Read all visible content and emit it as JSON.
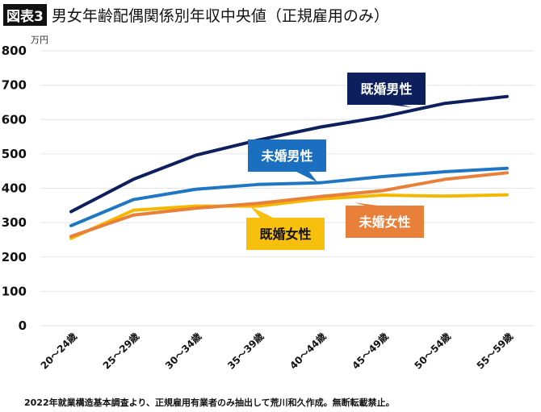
{
  "header": {
    "badge": "図表3",
    "title": "男女年齢配偶関係別年収中央値（正規雇用のみ）"
  },
  "footer": {
    "note": "2022年就業構造基本調査より、正規雇用有業者のみ抽出して荒川和久作成。無断転載禁止。"
  },
  "chart_data": {
    "type": "line",
    "ylabel": "万円",
    "ylim": [
      0,
      800
    ],
    "yticks": [
      "0",
      "100",
      "200",
      "300",
      "400",
      "500",
      "600",
      "700",
      "800"
    ],
    "grid": true,
    "categories": [
      "20～24歳",
      "25～29歳",
      "30～34歳",
      "35～39歳",
      "40～44歳",
      "45～49歳",
      "50～54歳",
      "55～59歳"
    ],
    "series": [
      {
        "name": "既婚男性",
        "color": "#0d1f5c",
        "label_bg": "#0d1f5c",
        "label_fg": "#ffffff",
        "values": [
          332,
          426,
          496,
          540,
          578,
          608,
          647,
          667
        ]
      },
      {
        "name": "未婚男性",
        "color": "#1f77c4",
        "label_bg": "#1a6fc0",
        "label_fg": "#ffffff",
        "values": [
          291,
          367,
          397,
          411,
          416,
          434,
          448,
          458
        ]
      },
      {
        "name": "未婚女性",
        "color": "#e8803a",
        "label_bg": "#e8803a",
        "label_fg": "#ffffff",
        "values": [
          260,
          322,
          342,
          356,
          376,
          393,
          426,
          445
        ]
      },
      {
        "name": "既婚女性",
        "color": "#f5b800",
        "label_bg": "#f7bf0e",
        "label_fg": "#111111",
        "values": [
          254,
          336,
          348,
          348,
          369,
          380,
          377,
          381
        ]
      }
    ]
  }
}
